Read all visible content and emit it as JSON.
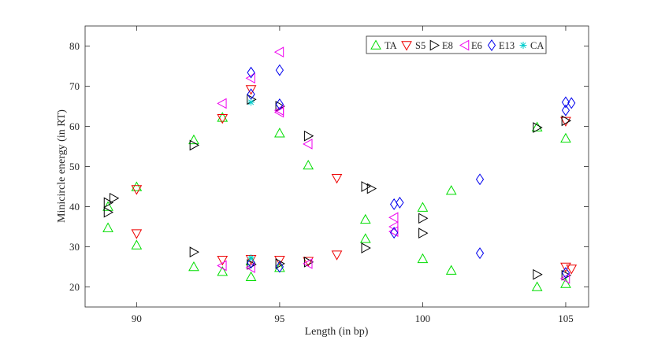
{
  "chart_data": {
    "type": "scatter",
    "title": "",
    "xlabel": "Length (in bp)",
    "ylabel": "Minicircle energy (in RT)",
    "xlim": [
      88.2,
      105.8
    ],
    "ylim": [
      15,
      85
    ],
    "xticks": [
      90,
      95,
      100,
      105
    ],
    "yticks": [
      20,
      30,
      40,
      50,
      60,
      70,
      80
    ],
    "grid": false,
    "legend_position": "top-right",
    "series": [
      {
        "name": "TA",
        "marker": "triangle-up",
        "color": "#00dd00",
        "points": [
          [
            89,
            34.7
          ],
          [
            89,
            40.0
          ],
          [
            90,
            30.4
          ],
          [
            90,
            44.9
          ],
          [
            92,
            56.6
          ],
          [
            92,
            25.0
          ],
          [
            93,
            62.2
          ],
          [
            93,
            23.8
          ],
          [
            94,
            22.5
          ],
          [
            94,
            26.5
          ],
          [
            95,
            58.3
          ],
          [
            95,
            24.8
          ],
          [
            96,
            50.3
          ],
          [
            98,
            36.8
          ],
          [
            98,
            32.0
          ],
          [
            100,
            39.8
          ],
          [
            100,
            27.0
          ],
          [
            101,
            44.0
          ],
          [
            101,
            24.1
          ],
          [
            104,
            59.8
          ],
          [
            104,
            20.0
          ],
          [
            105,
            57.0
          ],
          [
            105,
            20.8
          ]
        ]
      },
      {
        "name": "S5",
        "marker": "triangle-down",
        "color": "#ee0000",
        "points": [
          [
            90,
            44.3
          ],
          [
            90,
            33.3
          ],
          [
            93,
            62.0
          ],
          [
            93,
            26.7
          ],
          [
            94,
            69.2
          ],
          [
            94,
            26.9
          ],
          [
            95,
            26.7
          ],
          [
            96,
            26.4
          ],
          [
            97,
            47.1
          ],
          [
            97,
            28.0
          ],
          [
            105,
            61.3
          ],
          [
            105,
            25.0
          ],
          [
            105.2,
            24.5
          ]
        ]
      },
      {
        "name": "E8",
        "marker": "triangle-right",
        "color": "#000000",
        "points": [
          [
            89,
            38.6
          ],
          [
            89,
            41.0
          ],
          [
            89.2,
            42.1
          ],
          [
            92,
            55.3
          ],
          [
            92,
            28.7
          ],
          [
            94,
            66.7
          ],
          [
            94,
            25.6
          ],
          [
            95,
            65.0
          ],
          [
            95,
            25.8
          ],
          [
            96,
            57.6
          ],
          [
            96,
            26.2
          ],
          [
            98,
            45.0
          ],
          [
            98.2,
            44.5
          ],
          [
            98,
            29.7
          ],
          [
            100,
            37.1
          ],
          [
            100,
            33.4
          ],
          [
            104,
            59.7
          ],
          [
            104,
            23.1
          ],
          [
            105,
            61.4
          ],
          [
            105,
            22.9
          ]
        ]
      },
      {
        "name": "E6",
        "marker": "triangle-left",
        "color": "#ee00ee",
        "points": [
          [
            93,
            65.7
          ],
          [
            93,
            25.3
          ],
          [
            94,
            72.0
          ],
          [
            94,
            24.8
          ],
          [
            95,
            78.5
          ],
          [
            95,
            64.0
          ],
          [
            95,
            63.5
          ],
          [
            96,
            55.6
          ],
          [
            96,
            25.8
          ],
          [
            99,
            37.3
          ],
          [
            99,
            35.0
          ],
          [
            99,
            33.8
          ],
          [
            105,
            22.1
          ]
        ]
      },
      {
        "name": "E13",
        "marker": "diamond",
        "color": "#0000ee",
        "points": [
          [
            94,
            73.4
          ],
          [
            94,
            68.0
          ],
          [
            94,
            26.0
          ],
          [
            95,
            74.0
          ],
          [
            95,
            65.5
          ],
          [
            95,
            25.0
          ],
          [
            99,
            40.6
          ],
          [
            99.2,
            41.0
          ],
          [
            99,
            33.5
          ],
          [
            102,
            46.8
          ],
          [
            102,
            28.4
          ],
          [
            105,
            66.0
          ],
          [
            105,
            64.0
          ],
          [
            105.2,
            65.8
          ],
          [
            105,
            23.5
          ]
        ]
      },
      {
        "name": "CA",
        "marker": "asterisk",
        "color": "#00cccc",
        "points": [
          [
            94,
            66.0
          ],
          [
            94,
            27.2
          ]
        ]
      }
    ]
  }
}
